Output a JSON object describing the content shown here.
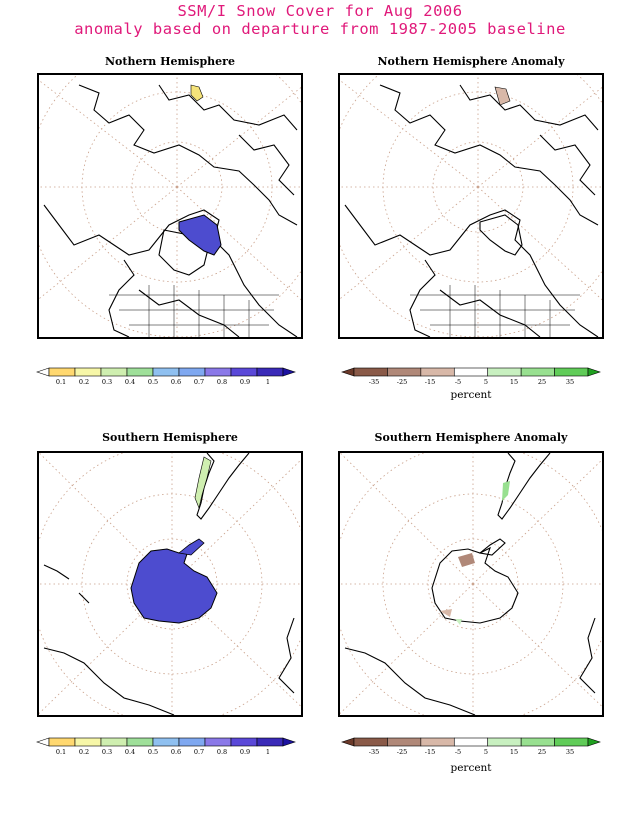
{
  "title": {
    "line1": "SSM/I Snow Cover for Aug 2006",
    "line2": "anomaly based on departure from 1987-2005 baseline"
  },
  "panels": {
    "nh": {
      "title": "Nothern Hemisphere"
    },
    "nh_anom": {
      "title": "Nothern Hemisphere Anomaly"
    },
    "sh": {
      "title": "Southern Hemisphere"
    },
    "sh_anom": {
      "title": "Southern Hemisphere Anomaly"
    }
  },
  "colorbars": {
    "fraction": {
      "ticks": [
        "0.1",
        "0.2",
        "0.3",
        "0.4",
        "0.5",
        "0.6",
        "0.7",
        "0.8",
        "0.9",
        "1"
      ],
      "colors": [
        "#ffffff",
        "#ffd870",
        "#f7f7a8",
        "#cfefb0",
        "#9fe09a",
        "#8fc0f0",
        "#7fa8f0",
        "#8a78e8",
        "#5a48d8",
        "#3a2ab8",
        "#1c12a0"
      ]
    },
    "anomaly": {
      "ticks": [
        "-35",
        "-25",
        "-15",
        "-5",
        "5",
        "15",
        "25",
        "35"
      ],
      "unit": "percent",
      "colors": [
        "#6b3a2a",
        "#8a5a48",
        "#b08878",
        "#d8b8a8",
        "#ffffff",
        "#c8f0c0",
        "#98e090",
        "#60cc58",
        "#20a020"
      ]
    }
  },
  "colors": {
    "title": "#e0197a",
    "snow": "#4d4ccf",
    "graticule": "#c9a08a",
    "coast": "#000000"
  }
}
